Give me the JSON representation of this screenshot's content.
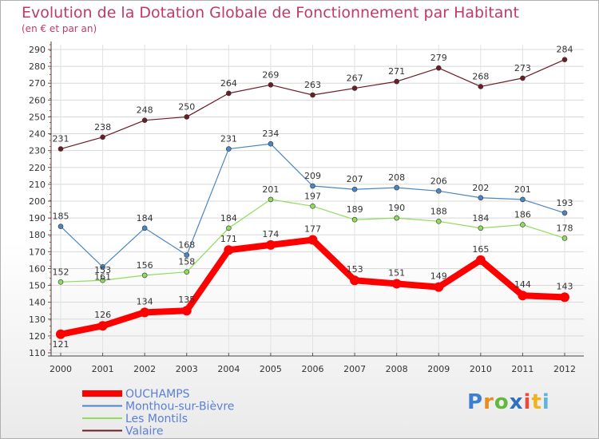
{
  "chart_data": {
    "type": "line",
    "title": "Evolution de la Dotation Globale de Fonctionnement par Habitant",
    "subtitle": "(en € et par an)",
    "categories": [
      "2000",
      "2001",
      "2002",
      "2003",
      "2004",
      "2005",
      "2006",
      "2007",
      "2008",
      "2009",
      "2010",
      "2011",
      "2012"
    ],
    "ylim": [
      110,
      290
    ],
    "yticks": [
      110,
      120,
      130,
      140,
      150,
      160,
      170,
      180,
      190,
      200,
      210,
      220,
      230,
      240,
      250,
      260,
      270,
      280,
      290
    ],
    "grid": true,
    "legend": "bottom-left",
    "series": [
      {
        "name": "Valaire",
        "color": "#6b1c24",
        "values": [
          231,
          238,
          248,
          250,
          264,
          269,
          263,
          267,
          271,
          279,
          268,
          273,
          284
        ]
      },
      {
        "name": "Monthou-sur-Bièvre",
        "color": "#4a86c4",
        "values": [
          185,
          161,
          184,
          168,
          231,
          234,
          209,
          207,
          208,
          206,
          202,
          201,
          193
        ]
      },
      {
        "name": "Les Montils",
        "color": "#8fdc5a",
        "values": [
          152,
          153,
          156,
          158,
          184,
          201,
          197,
          189,
          190,
          188,
          184,
          186,
          178
        ]
      },
      {
        "name": "OUCHAMPS",
        "color": "#ff0000",
        "values": [
          121,
          126,
          134,
          135,
          171,
          174,
          177,
          153,
          151,
          149,
          165,
          144,
          143
        ]
      }
    ],
    "legend_order": [
      "OUCHAMPS",
      "Monthou-sur-Bièvre",
      "Les Montils",
      "Valaire"
    ]
  },
  "logo": {
    "text": "Proxiti"
  }
}
